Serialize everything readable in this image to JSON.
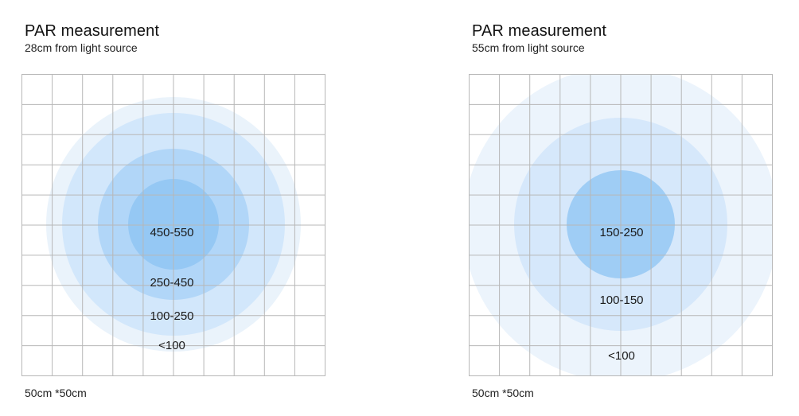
{
  "panels": [
    {
      "title": "PAR measurement",
      "subtitle": "28cm from light source",
      "dimensions": "50cm *50cm",
      "zones": [
        {
          "label": "<100",
          "color": "#eaf3fb"
        },
        {
          "label": "100-250",
          "color": "#d2e7fb"
        },
        {
          "label": "250-450",
          "color": "#b1d6f8"
        },
        {
          "label": "450-550",
          "color": "#95c8f4"
        }
      ]
    },
    {
      "title": "PAR measurement",
      "subtitle": "55cm from light source",
      "dimensions": "50cm *50cm",
      "zones": [
        {
          "label": "<100",
          "color": "#ecf4fc"
        },
        {
          "label": "100-150",
          "color": "#d6e8fb"
        },
        {
          "label": "150-250",
          "color": "#9fcdf5"
        }
      ]
    }
  ],
  "grid_color": "#b7b7b7"
}
